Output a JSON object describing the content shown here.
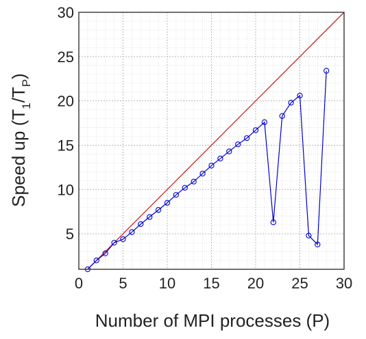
{
  "chart_data": {
    "type": "line",
    "title": "",
    "xlabel": "Number of MPI processes (P)",
    "ylabel": {
      "prefix": "Speed up (T",
      "sub1": "1",
      "mid": "/T",
      "sub2": "P",
      "suffix": ")"
    },
    "xlim": [
      0,
      30
    ],
    "ylim": [
      1,
      30
    ],
    "xticks": [
      0,
      5,
      10,
      15,
      20,
      25,
      30
    ],
    "yticks": [
      5,
      10,
      15,
      20,
      25,
      30
    ],
    "grid": true,
    "minor_grid": true,
    "series": [
      {
        "color": "#0000cc",
        "marker": "circle",
        "x": [
          1,
          2,
          3,
          4,
          5,
          6,
          7,
          8,
          9,
          10,
          11,
          12,
          13,
          14,
          15,
          16,
          17,
          18,
          19,
          20,
          21,
          22,
          23,
          24,
          25,
          26,
          27,
          28
        ],
        "values": [
          1.0,
          2.0,
          2.8,
          4.0,
          4.4,
          5.2,
          6.1,
          6.9,
          7.7,
          8.5,
          9.4,
          10.2,
          10.9,
          11.8,
          12.7,
          13.5,
          14.3,
          15.1,
          15.8,
          16.7,
          17.6,
          6.3,
          18.3,
          19.8,
          20.6,
          4.8,
          3.8,
          23.4
        ]
      },
      {
        "color": "#cc2222",
        "marker": "none",
        "x": [
          1,
          30
        ],
        "values": [
          1,
          30
        ]
      }
    ]
  }
}
